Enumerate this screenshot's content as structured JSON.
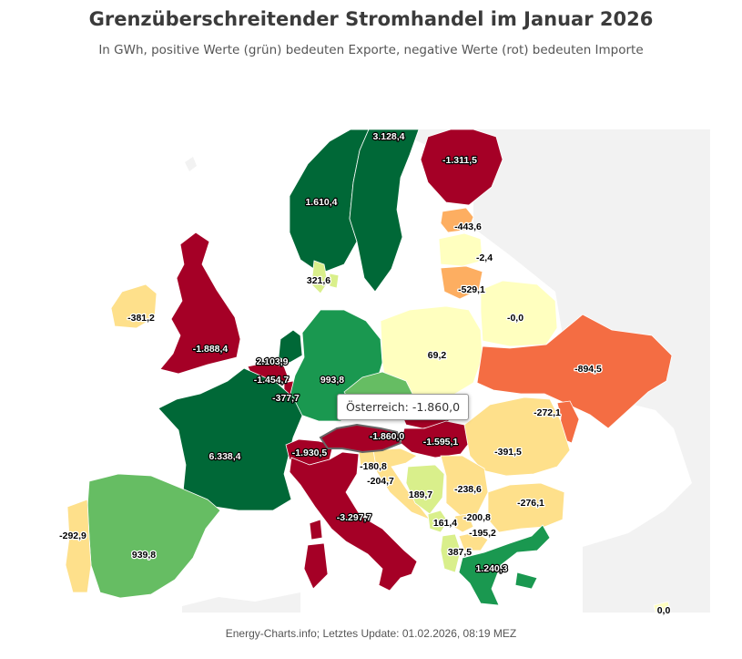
{
  "chart_data": {
    "type": "choropleth-map",
    "title": "Grenzüberschreitender Stromhandel im Januar 2026",
    "subtitle": "In GWh, positive Werte (grün) bedeuten Exporte, negative Werte (rot) bedeuten Importe",
    "footer": "Energy-Charts.info; Letztes Update: 01.02.2026, 08:19 MEZ",
    "tooltip": "Österreich: -1.860,0",
    "colors": {
      "strong_export": "#006837",
      "export": "#1a9850",
      "moderate_export": "#66bd63",
      "light_export": "#d9ef8b",
      "neutral": "#ffffbf",
      "light_import": "#fee08b",
      "moderate_import": "#fdae61",
      "import": "#f46d43",
      "strong_import": "#a50026",
      "no_data": "#f2f2f2"
    },
    "countries": [
      {
        "id": "NO",
        "label": "1.610,4",
        "value": 1610.4,
        "color": "#006837"
      },
      {
        "id": "SE",
        "label": "3.128,4",
        "value": 3128.4,
        "color": "#006837"
      },
      {
        "id": "FI",
        "label": "-1.311,5",
        "value": -1311.5,
        "color": "#a50026"
      },
      {
        "id": "EE",
        "label": "-443,6",
        "value": -443.6,
        "color": "#fdae61"
      },
      {
        "id": "LV",
        "label": "-2,4",
        "value": -2.4,
        "color": "#ffffbf"
      },
      {
        "id": "LT",
        "label": "-529,1",
        "value": -529.1,
        "color": "#fdae61"
      },
      {
        "id": "DK",
        "label": "321,6",
        "value": 321.6,
        "color": "#d9ef8b"
      },
      {
        "id": "GB",
        "label": "-1.888,4",
        "value": -1888.4,
        "color": "#a50026"
      },
      {
        "id": "IE",
        "label": "-381,2",
        "value": -381.2,
        "color": "#fee08b"
      },
      {
        "id": "NL",
        "label": "2.103,9",
        "value": 2103.9,
        "color": "#006837"
      },
      {
        "id": "BE",
        "label": "-1.454,7",
        "value": -1454.7,
        "color": "#a50026"
      },
      {
        "id": "LU",
        "label": "-377,7",
        "value": -377.7,
        "color": "#a50026"
      },
      {
        "id": "DE",
        "label": "993,8",
        "value": 993.8,
        "color": "#1a9850"
      },
      {
        "id": "PL",
        "label": "69,2",
        "value": 69.2,
        "color": "#ffffbf"
      },
      {
        "id": "BY",
        "label": "-0,0",
        "value": -0.0,
        "color": "#ffffbf"
      },
      {
        "id": "UA",
        "label": "-894,5",
        "value": -894.5,
        "color": "#f46d43"
      },
      {
        "id": "MD",
        "label": "-272,1",
        "value": -272.1,
        "color": "#f46d43"
      },
      {
        "id": "FR",
        "label": "6.338,4",
        "value": 6338.4,
        "color": "#006837"
      },
      {
        "id": "CH",
        "label": "-1.930,5",
        "value": -1930.5,
        "color": "#a50026"
      },
      {
        "id": "AT",
        "label": "-1.860,0",
        "value": -1860.0,
        "color": "#a50026"
      },
      {
        "id": "CZ",
        "label": "",
        "value": null,
        "color": "#66bd63"
      },
      {
        "id": "SK",
        "label": "",
        "value": null,
        "color": "#a50026"
      },
      {
        "id": "HU",
        "label": "-1.595,1",
        "value": -1595.1,
        "color": "#a50026"
      },
      {
        "id": "RO",
        "label": "-391,5",
        "value": -391.5,
        "color": "#fee08b"
      },
      {
        "id": "SI",
        "label": "-180,8",
        "value": -180.8,
        "color": "#fee08b"
      },
      {
        "id": "HR",
        "label": "-204,7",
        "value": -204.7,
        "color": "#fee08b"
      },
      {
        "id": "BA",
        "label": "189,7",
        "value": 189.7,
        "color": "#d9ef8b"
      },
      {
        "id": "RS",
        "label": "-238,6",
        "value": -238.6,
        "color": "#fee08b"
      },
      {
        "id": "ME",
        "label": "161,4",
        "value": 161.4,
        "color": "#d9ef8b"
      },
      {
        "id": "XK",
        "label": "-200,8",
        "value": -200.8,
        "color": "#fee08b"
      },
      {
        "id": "MK",
        "label": "-195,2",
        "value": -195.2,
        "color": "#fee08b"
      },
      {
        "id": "AL",
        "label": "387,5",
        "value": 387.5,
        "color": "#d9ef8b"
      },
      {
        "id": "BG",
        "label": "-276,1",
        "value": -276.1,
        "color": "#fee08b"
      },
      {
        "id": "GR",
        "label": "1.240,3",
        "value": 1240.3,
        "color": "#1a9850"
      },
      {
        "id": "IT",
        "label": "-3.297,7",
        "value": -3297.7,
        "color": "#a50026"
      },
      {
        "id": "ES",
        "label": "939,8",
        "value": 939.8,
        "color": "#66bd63"
      },
      {
        "id": "PT",
        "label": "-292,9",
        "value": -292.9,
        "color": "#fee08b"
      },
      {
        "id": "CY",
        "label": "0,0",
        "value": 0.0,
        "color": "#ffffbf"
      }
    ]
  }
}
